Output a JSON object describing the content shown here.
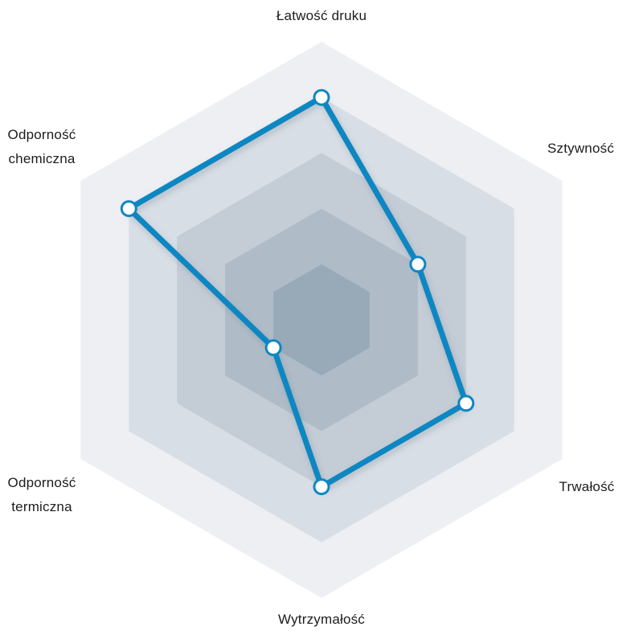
{
  "chart_data": {
    "type": "radar",
    "title": "",
    "categories": [
      "Łatwość druku",
      "Sztywność",
      "Trwałość",
      "Wytrzymałość",
      "Odporność termiczna",
      "Odporność chemiczna"
    ],
    "values": [
      4,
      2,
      3,
      3,
      1,
      4
    ],
    "value_range": [
      0,
      5
    ],
    "rings": 5,
    "grid": "filled-nested-hexagons",
    "legend_position": "none",
    "ring_colors_inner_to_outer": [
      "#98a9b8",
      "#afbcc8",
      "#c4ccd6",
      "#d8dee5",
      "#edeff2"
    ],
    "line_color": "#0e87c2",
    "marker_fill": "#ffffff",
    "marker_stroke": "#0e87c2",
    "background_color": "#ffffff",
    "label_color": "#1c1c1c"
  }
}
